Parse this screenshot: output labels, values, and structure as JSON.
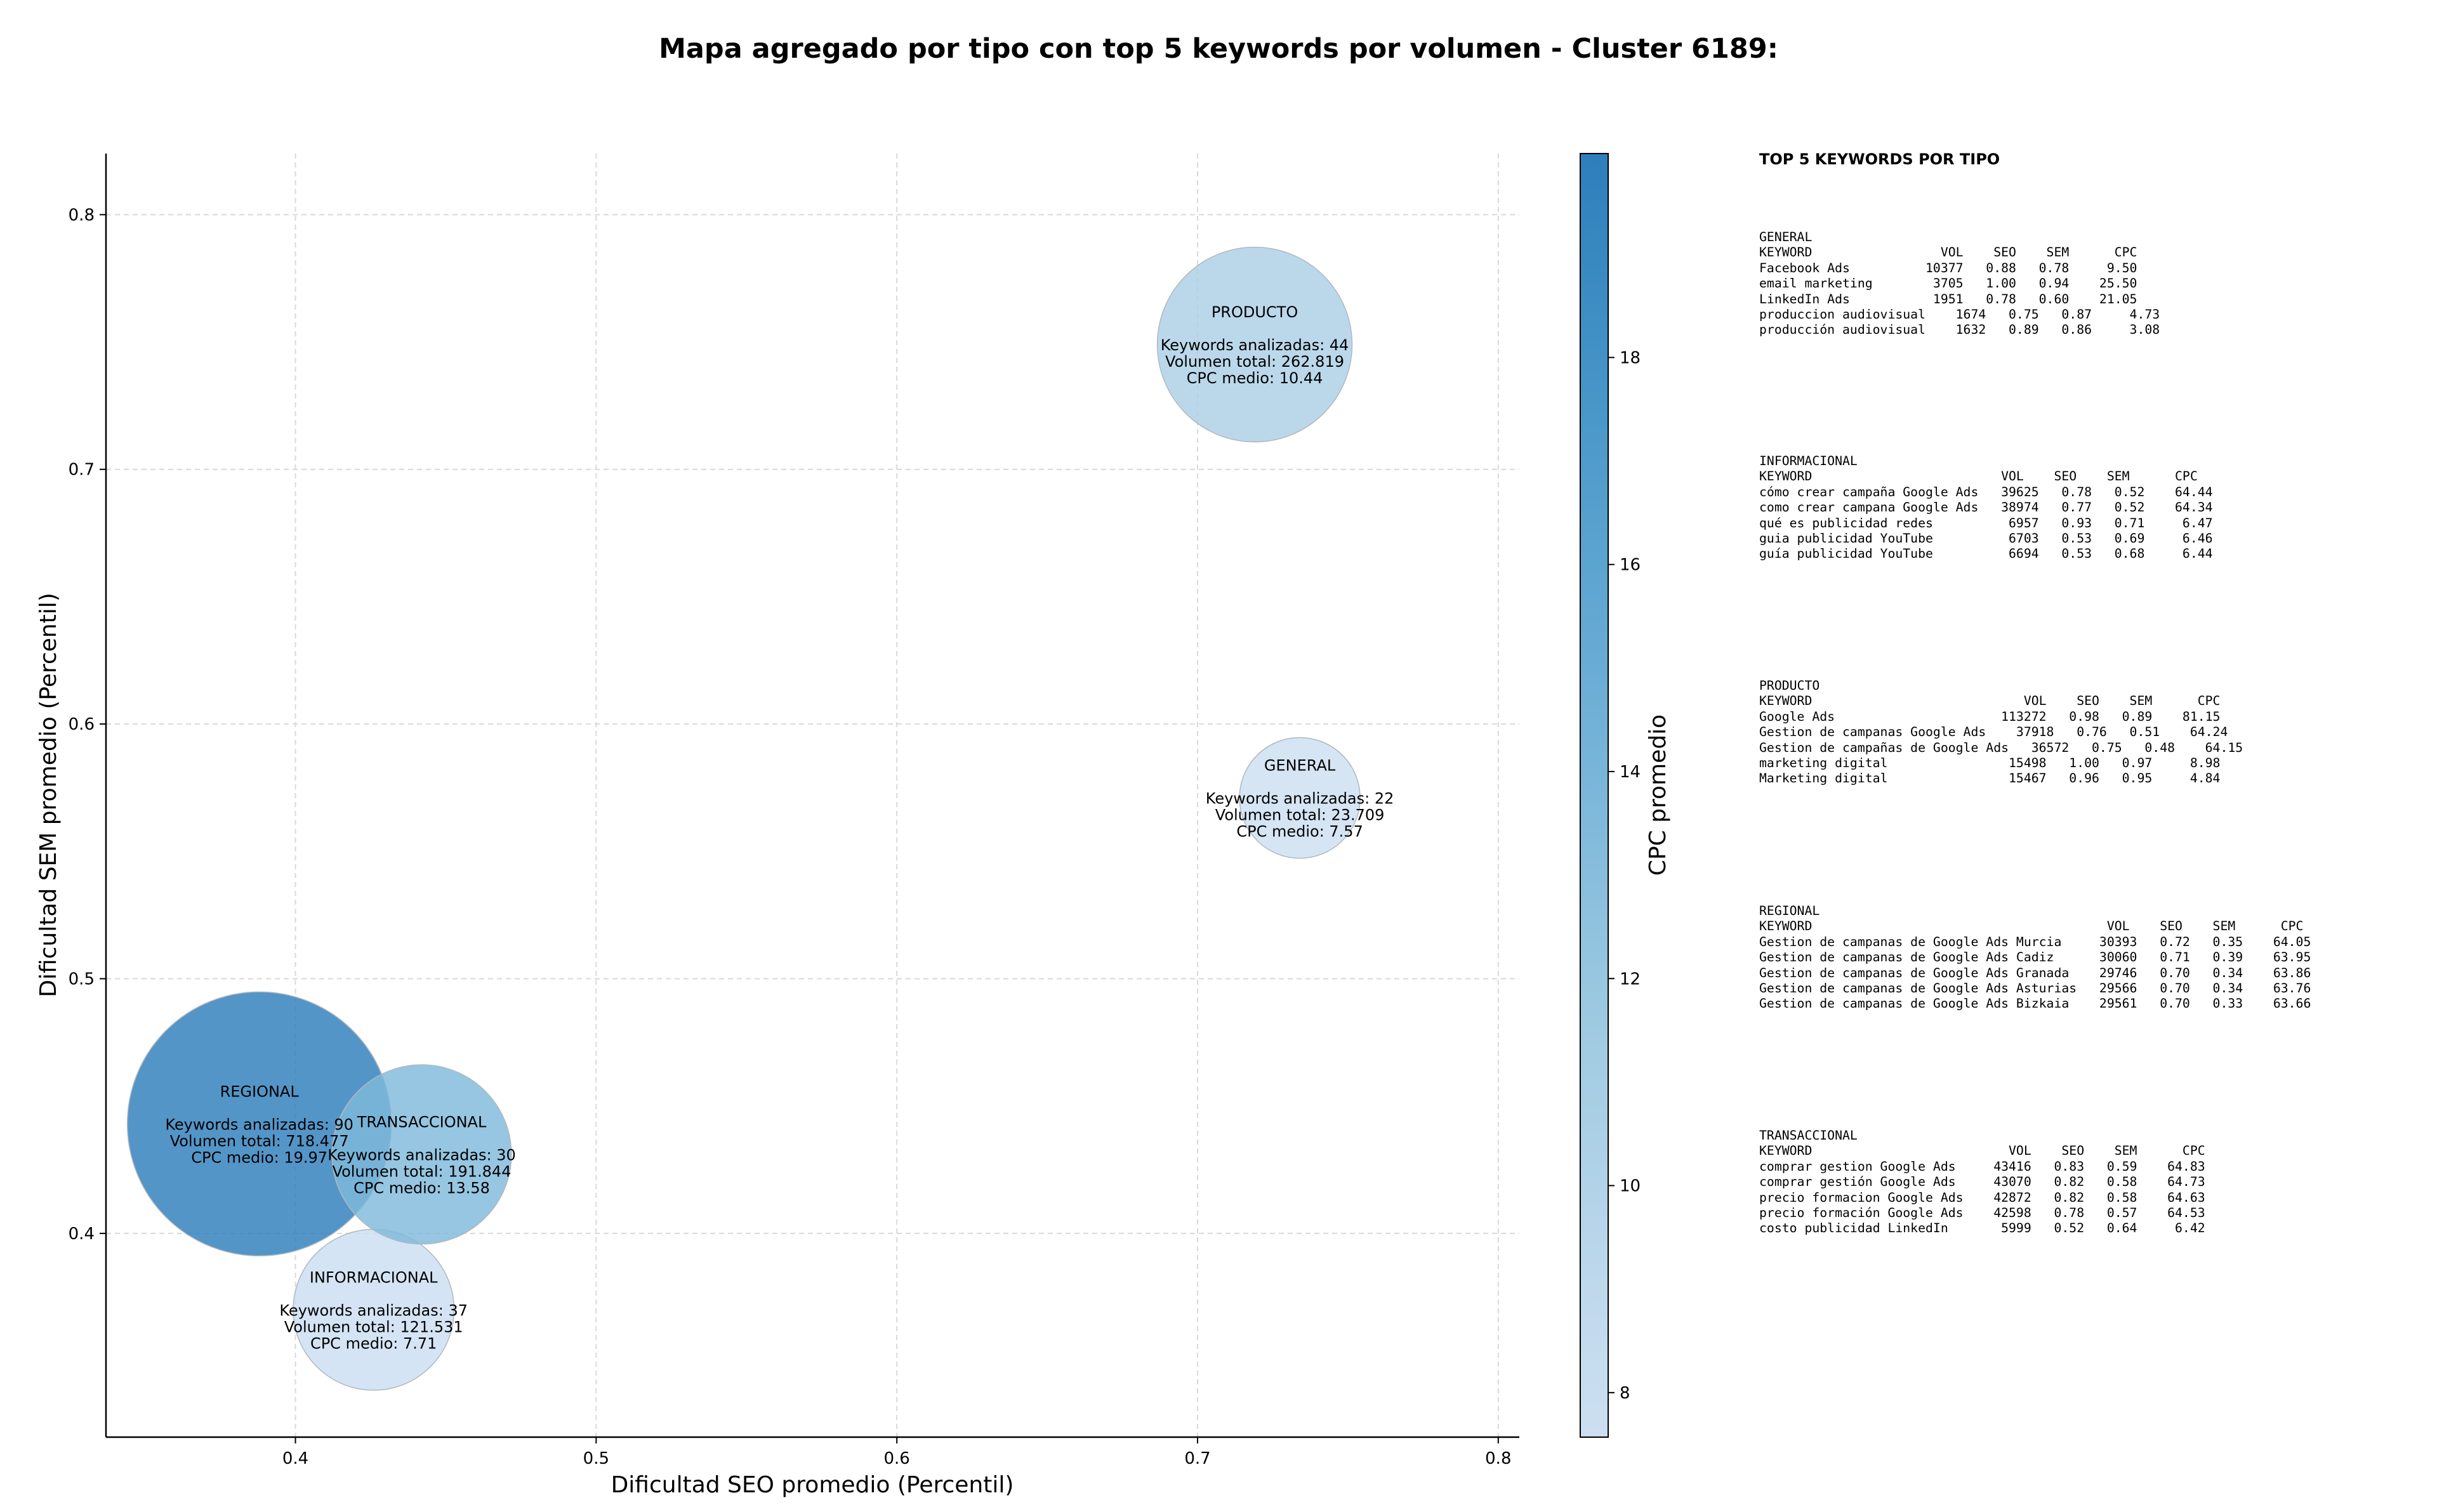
{
  "chart_data": {
    "type": "scatter",
    "title": "Mapa agregado por tipo con top 5 keywords por volumen - Cluster 6189:",
    "xlabel": "Dificultad SEO promedio (Percentil)",
    "ylabel": "Dificultad SEM promedio (Percentil)",
    "xlim": [
      0.337,
      0.807
    ],
    "ylim": [
      0.32,
      0.824
    ],
    "xticks": [
      "0.4",
      "0.5",
      "0.6",
      "0.7",
      "0.8"
    ],
    "yticks": [
      "0.4",
      "0.5",
      "0.6",
      "0.7",
      "0.8"
    ],
    "grid": true,
    "colorbar": {
      "label": "CPC promedio",
      "min": 7.57,
      "max": 19.97,
      "ticks": [
        "8",
        "10",
        "12",
        "14",
        "16",
        "18"
      ],
      "colormap": [
        "#f7fbff",
        "#deebf7",
        "#c6dbef",
        "#9ecae1",
        "#6baed6",
        "#4292c6",
        "#2171b5",
        "#08519c"
      ]
    },
    "points": [
      {
        "name": "PRODUCTO",
        "x": 0.719,
        "y": 0.749,
        "keywords": 44,
        "volume": 262819,
        "cpc": 10.44,
        "lines": [
          "Keywords analizadas: 44",
          "Volumen total: 262.819",
          "CPC medio: 10.44"
        ]
      },
      {
        "name": "GENERAL",
        "x": 0.734,
        "y": 0.571,
        "keywords": 22,
        "volume": 23709,
        "cpc": 7.57,
        "lines": [
          "Keywords analizadas: 22",
          "Volumen total: 23.709",
          "CPC medio: 7.57"
        ]
      },
      {
        "name": "INFORMACIONAL",
        "x": 0.426,
        "y": 0.37,
        "keywords": 37,
        "volume": 121531,
        "cpc": 7.71,
        "lines": [
          "Keywords analizadas: 37",
          "Volumen total: 121.531",
          "CPC medio: 7.71"
        ]
      },
      {
        "name": "REGIONAL",
        "x": 0.388,
        "y": 0.443,
        "keywords": 90,
        "volume": 718477,
        "cpc": 19.97,
        "lines": [
          "Keywords analizadas: 90",
          "Volumen total: 718.477",
          "CPC medio: 19.97"
        ]
      },
      {
        "name": "TRANSACCIONAL",
        "x": 0.442,
        "y": 0.431,
        "keywords": 30,
        "volume": 191844,
        "cpc": 13.58,
        "lines": [
          "Keywords analizadas: 30",
          "Volumen total: 191.844",
          "CPC medio: 13.58"
        ]
      }
    ]
  },
  "panel": {
    "heading": "TOP 5 KEYWORDS POR TIPO",
    "blocks": [
      {
        "type": "GENERAL",
        "text": "GENERAL\nKEYWORD                 VOL    SEO    SEM      CPC\nFacebook Ads          10377   0.88   0.78     9.50\nemail marketing        3705   1.00   0.94    25.50\nLinkedIn Ads           1951   0.78   0.60    21.05\nproduccion audiovisual    1674   0.75   0.87     4.73\nproducción audiovisual    1632   0.89   0.86     3.08"
      },
      {
        "type": "INFORMACIONAL",
        "text": "INFORMACIONAL\nKEYWORD                         VOL    SEO    SEM      CPC\ncómo crear campaña Google Ads   39625   0.78   0.52    64.44\ncomo crear campana Google Ads   38974   0.77   0.52    64.34\nqué es publicidad redes          6957   0.93   0.71     6.47\nguia publicidad YouTube          6703   0.53   0.69     6.46\nguía publicidad YouTube          6694   0.53   0.68     6.44"
      },
      {
        "type": "PRODUCTO",
        "text": "PRODUCTO\nKEYWORD                            VOL    SEO    SEM      CPC\nGoogle Ads                      113272   0.98   0.89    81.15\nGestion de campanas Google Ads    37918   0.76   0.51    64.24\nGestion de campañas de Google Ads   36572   0.75   0.48    64.15\nmarketing digital                15498   1.00   0.97     8.98\nMarketing digital                15467   0.96   0.95     4.84"
      },
      {
        "type": "REGIONAL",
        "text": "REGIONAL\nKEYWORD                                       VOL    SEO    SEM      CPC\nGestion de campanas de Google Ads Murcia     30393   0.72   0.35    64.05\nGestion de campanas de Google Ads Cadiz      30060   0.71   0.39    63.95\nGestion de campanas de Google Ads Granada    29746   0.70   0.34    63.86\nGestion de campanas de Google Ads Asturias   29566   0.70   0.34    63.76\nGestion de campanas de Google Ads Bizkaia    29561   0.70   0.33    63.66"
      },
      {
        "type": "TRANSACCIONAL",
        "text": "TRANSACCIONAL\nKEYWORD                          VOL    SEO    SEM      CPC\ncomprar gestion Google Ads     43416   0.83   0.59    64.83\ncomprar gestión Google Ads     43070   0.82   0.58    64.73\nprecio formacion Google Ads    42872   0.82   0.58    64.63\nprecio formación Google Ads    42598   0.78   0.57    64.53\ncosto publicidad LinkedIn       5999   0.52   0.64     6.42"
      }
    ]
  }
}
